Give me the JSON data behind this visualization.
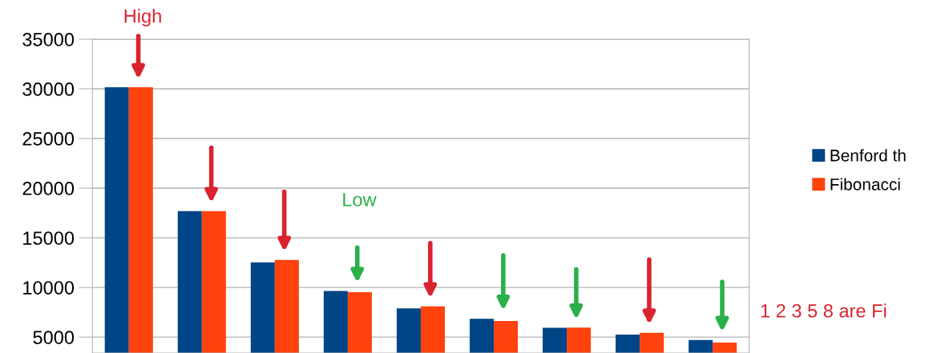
{
  "chart_data": {
    "type": "bar",
    "categories": [
      null,
      null,
      null,
      null,
      null,
      null,
      null,
      null,
      null
    ],
    "series": [
      {
        "name": "Benford th",
        "color": "#004586",
        "values": [
          30150,
          17690,
          12530,
          9650,
          7900,
          6850,
          5930,
          5250,
          4700
        ]
      },
      {
        "name": "Fibonacci",
        "color": "#ff420e",
        "values": [
          30150,
          17690,
          12770,
          9520,
          8090,
          6630,
          5950,
          5440,
          4450
        ]
      }
    ],
    "ylim": [
      3400,
      35000
    ],
    "yticks": [
      5000,
      10000,
      15000,
      20000,
      25000,
      30000,
      35000
    ],
    "grid": "y",
    "legend": "right",
    "annotations": [
      "High",
      "Low",
      "1 2 3 5 8 are Fi"
    ]
  }
}
